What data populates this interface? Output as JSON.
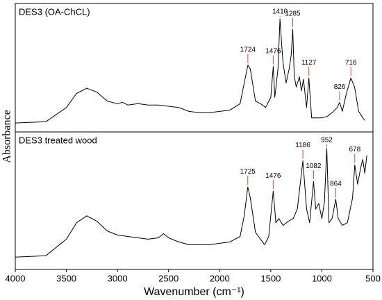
{
  "chart_data": [
    {
      "type": "line",
      "title": "DES3 (OA-ChCL)",
      "ylabel": "Absorbance",
      "color": "#000000",
      "annotation_color": "#e0463c",
      "xlim": [
        4000,
        500
      ],
      "ylim": [
        0,
        1
      ],
      "x": [
        4000,
        3700,
        3500,
        3400,
        3300,
        3200,
        3100,
        3000,
        2950,
        2900,
        2800,
        2700,
        2600,
        2500,
        2400,
        2300,
        2200,
        2100,
        2000,
        1900,
        1800,
        1760,
        1724,
        1700,
        1650,
        1600,
        1550,
        1500,
        1476,
        1460,
        1430,
        1410,
        1395,
        1380,
        1350,
        1320,
        1300,
        1285,
        1270,
        1250,
        1220,
        1200,
        1180,
        1150,
        1127,
        1100,
        1050,
        1000,
        950,
        900,
        850,
        826,
        800,
        760,
        716,
        680,
        640,
        600,
        580
      ],
      "values": [
        0.07,
        0.08,
        0.19,
        0.3,
        0.34,
        0.31,
        0.24,
        0.22,
        0.23,
        0.21,
        0.22,
        0.21,
        0.21,
        0.2,
        0.19,
        0.16,
        0.15,
        0.15,
        0.16,
        0.17,
        0.22,
        0.38,
        0.52,
        0.49,
        0.24,
        0.22,
        0.19,
        0.27,
        0.51,
        0.27,
        0.49,
        0.88,
        0.7,
        0.54,
        0.38,
        0.49,
        0.6,
        0.8,
        0.43,
        0.35,
        0.43,
        0.32,
        0.41,
        0.19,
        0.42,
        0.11,
        0.11,
        0.11,
        0.12,
        0.15,
        0.19,
        0.23,
        0.16,
        0.3,
        0.42,
        0.35,
        0.16,
        0.11,
        0.09
      ],
      "annotations": [
        {
          "label": "1724",
          "x": 1724
        },
        {
          "label": "1476",
          "x": 1476
        },
        {
          "label": "1410",
          "x": 1410
        },
        {
          "label": "1285",
          "x": 1285
        },
        {
          "label": "1127",
          "x": 1127
        },
        {
          "label": "826",
          "x": 826
        },
        {
          "label": "716",
          "x": 716
        }
      ]
    },
    {
      "type": "line",
      "title": "DES3 treated wood",
      "xlabel": "Wavenumber (cm⁻¹)",
      "color": "#000000",
      "annotation_color": "#e0463c",
      "xlim": [
        4000,
        500
      ],
      "ylim": [
        0,
        1
      ],
      "xticks": [
        4000,
        3500,
        3000,
        2500,
        2000,
        1500,
        1000,
        500
      ],
      "x": [
        4000,
        3700,
        3500,
        3400,
        3300,
        3200,
        3100,
        3000,
        2900,
        2800,
        2700,
        2600,
        2550,
        2500,
        2400,
        2300,
        2200,
        2100,
        2000,
        1900,
        1800,
        1760,
        1725,
        1700,
        1650,
        1600,
        1560,
        1520,
        1476,
        1450,
        1420,
        1380,
        1330,
        1280,
        1240,
        1186,
        1150,
        1120,
        1082,
        1060,
        1030,
        1000,
        975,
        952,
        930,
        900,
        864,
        840,
        800,
        750,
        700,
        678,
        650,
        620,
        600,
        580,
        560
      ],
      "values": [
        0.09,
        0.1,
        0.22,
        0.34,
        0.39,
        0.35,
        0.28,
        0.25,
        0.24,
        0.23,
        0.22,
        0.23,
        0.26,
        0.23,
        0.2,
        0.18,
        0.18,
        0.18,
        0.19,
        0.2,
        0.24,
        0.39,
        0.6,
        0.52,
        0.27,
        0.22,
        0.18,
        0.24,
        0.57,
        0.34,
        0.37,
        0.32,
        0.35,
        0.37,
        0.44,
        0.79,
        0.44,
        0.34,
        0.64,
        0.44,
        0.48,
        0.37,
        0.49,
        0.88,
        0.34,
        0.37,
        0.51,
        0.37,
        0.32,
        0.34,
        0.52,
        0.76,
        0.62,
        0.74,
        0.8,
        0.7,
        0.83
      ],
      "annotations": [
        {
          "label": "1725",
          "x": 1725
        },
        {
          "label": "1476",
          "x": 1476
        },
        {
          "label": "1186",
          "x": 1186
        },
        {
          "label": "1082",
          "x": 1082
        },
        {
          "label": "952",
          "x": 952
        },
        {
          "label": "864",
          "x": 864
        },
        {
          "label": "678",
          "x": 678
        }
      ]
    }
  ]
}
